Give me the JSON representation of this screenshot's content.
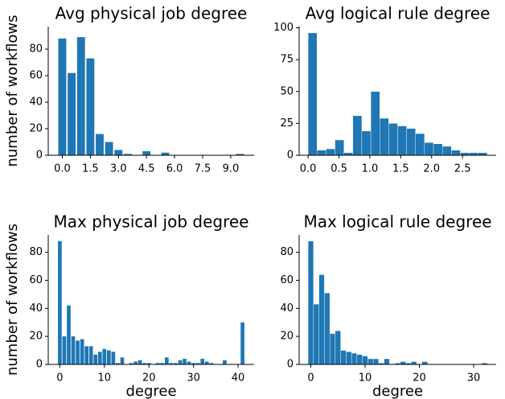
{
  "chart_data": [
    {
      "type": "histogram",
      "title": "Avg physical job degree",
      "y_label": "number of workflows",
      "color": "#1f77b4",
      "rwidth": 0.85,
      "bins": [
        -0.25,
        0.25,
        0.75,
        1.25,
        1.75,
        2.25,
        2.75,
        3.25,
        3.75,
        4.25,
        4.75,
        5.25,
        5.75,
        6.25,
        6.75,
        7.25,
        7.75,
        8.25,
        8.75,
        9.25,
        9.75
      ],
      "values": [
        88,
        62,
        89,
        73,
        16,
        10,
        4,
        1,
        0,
        3,
        0,
        2,
        0,
        0,
        0,
        0,
        0,
        0,
        0,
        1
      ],
      "xlim": [
        -0.75,
        10.25
      ],
      "ylim": [
        0,
        97
      ],
      "xticks": [
        {
          "value": 0,
          "label": "0.0"
        },
        {
          "value": 1.5,
          "label": "1.5"
        },
        {
          "value": 3,
          "label": "3.0"
        },
        {
          "value": 4.5,
          "label": "4.5"
        },
        {
          "value": 6,
          "label": "6.0"
        },
        {
          "value": 7.5,
          "label": "7.5"
        },
        {
          "value": 9,
          "label": "9.0"
        }
      ],
      "yticks": [
        0,
        20,
        40,
        60,
        80
      ]
    },
    {
      "type": "histogram",
      "title": "Avg logical rule degree",
      "color": "#1f77b4",
      "bins": [
        0,
        0.145,
        0.29,
        0.435,
        0.58,
        0.725,
        0.87,
        1.015,
        1.16,
        1.305,
        1.45,
        1.595,
        1.74,
        1.885,
        2.03,
        2.175,
        2.32,
        2.465,
        2.61,
        2.755,
        2.9
      ],
      "values": [
        96,
        4,
        5,
        12,
        2,
        31,
        19,
        50,
        29,
        25,
        23,
        21,
        17,
        10,
        9,
        7,
        4,
        2,
        2,
        2
      ],
      "xlim": [
        -0.145,
        3.045
      ],
      "ylim": [
        0,
        101
      ],
      "xticks": [
        {
          "value": 0,
          "label": "0.0"
        },
        {
          "value": 0.5,
          "label": "0.5"
        },
        {
          "value": 1,
          "label": "1.0"
        },
        {
          "value": 1.5,
          "label": "1.5"
        },
        {
          "value": 2,
          "label": "2.0"
        },
        {
          "value": 2.5,
          "label": "2.5"
        }
      ],
      "yticks": [
        0,
        25,
        50,
        75,
        100
      ]
    },
    {
      "type": "histogram",
      "title": "Max physical job degree",
      "y_label": "number of workflows",
      "x_label": "degree",
      "color": "#1f77b4",
      "rwidth": 0.85,
      "bins": [
        -0.5,
        0.5,
        1.5,
        2.5,
        3.5,
        4.5,
        5.5,
        6.5,
        7.5,
        8.5,
        9.5,
        10.5,
        11.5,
        12.5,
        13.5,
        14.5,
        15.5,
        16.5,
        17.5,
        18.5,
        19.5,
        20.5,
        21.5,
        22.5,
        23.5,
        24.5,
        25.5,
        26.5,
        27.5,
        28.5,
        29.5,
        30.5,
        31.5,
        32.5,
        33.5,
        34.5,
        35.5,
        36.5,
        37.5,
        38.5,
        39.5,
        40.5,
        41.5
      ],
      "values": [
        88,
        20,
        42,
        20,
        17,
        18,
        13,
        13,
        7,
        9,
        11,
        10,
        9,
        1,
        5,
        0,
        1,
        2,
        3,
        1,
        1,
        0,
        1,
        1,
        5,
        1,
        1,
        3,
        4,
        2,
        1,
        1,
        4,
        2,
        1,
        0,
        0,
        3,
        0,
        0,
        0,
        30
      ],
      "xlim": [
        -2.6,
        43.6
      ],
      "ylim": [
        0,
        92.4
      ],
      "xticks": [
        0,
        10,
        20,
        30,
        40
      ],
      "yticks": [
        0,
        20,
        40,
        60,
        80
      ]
    },
    {
      "type": "histogram",
      "title": "Max logical rule degree",
      "x_label": "degree",
      "color": "#1f77b4",
      "bins": [
        -0.5,
        0.5,
        1.5,
        2.5,
        3.5,
        4.5,
        5.5,
        6.5,
        7.5,
        8.5,
        9.5,
        10.5,
        11.5,
        12.5,
        13.5,
        14.5,
        15.5,
        16.5,
        17.5,
        18.5,
        19.5,
        20.5,
        21.5,
        22.5,
        23.5,
        24.5,
        25.5,
        26.5,
        27.5,
        28.5,
        29.5,
        30.5,
        31.5,
        32.5
      ],
      "values": [
        88,
        43,
        64,
        51,
        22,
        24,
        10,
        9,
        8,
        7,
        6,
        4,
        4,
        1,
        4,
        0,
        1,
        2,
        1,
        2,
        0,
        2,
        0,
        0,
        0,
        0,
        0,
        0,
        0,
        0,
        0,
        0,
        1
      ],
      "xlim": [
        -2.15,
        34.15
      ],
      "ylim": [
        0,
        92.4
      ],
      "xticks": [
        0,
        10,
        20,
        30
      ],
      "yticks": [
        0,
        20,
        40,
        60,
        80
      ]
    }
  ]
}
